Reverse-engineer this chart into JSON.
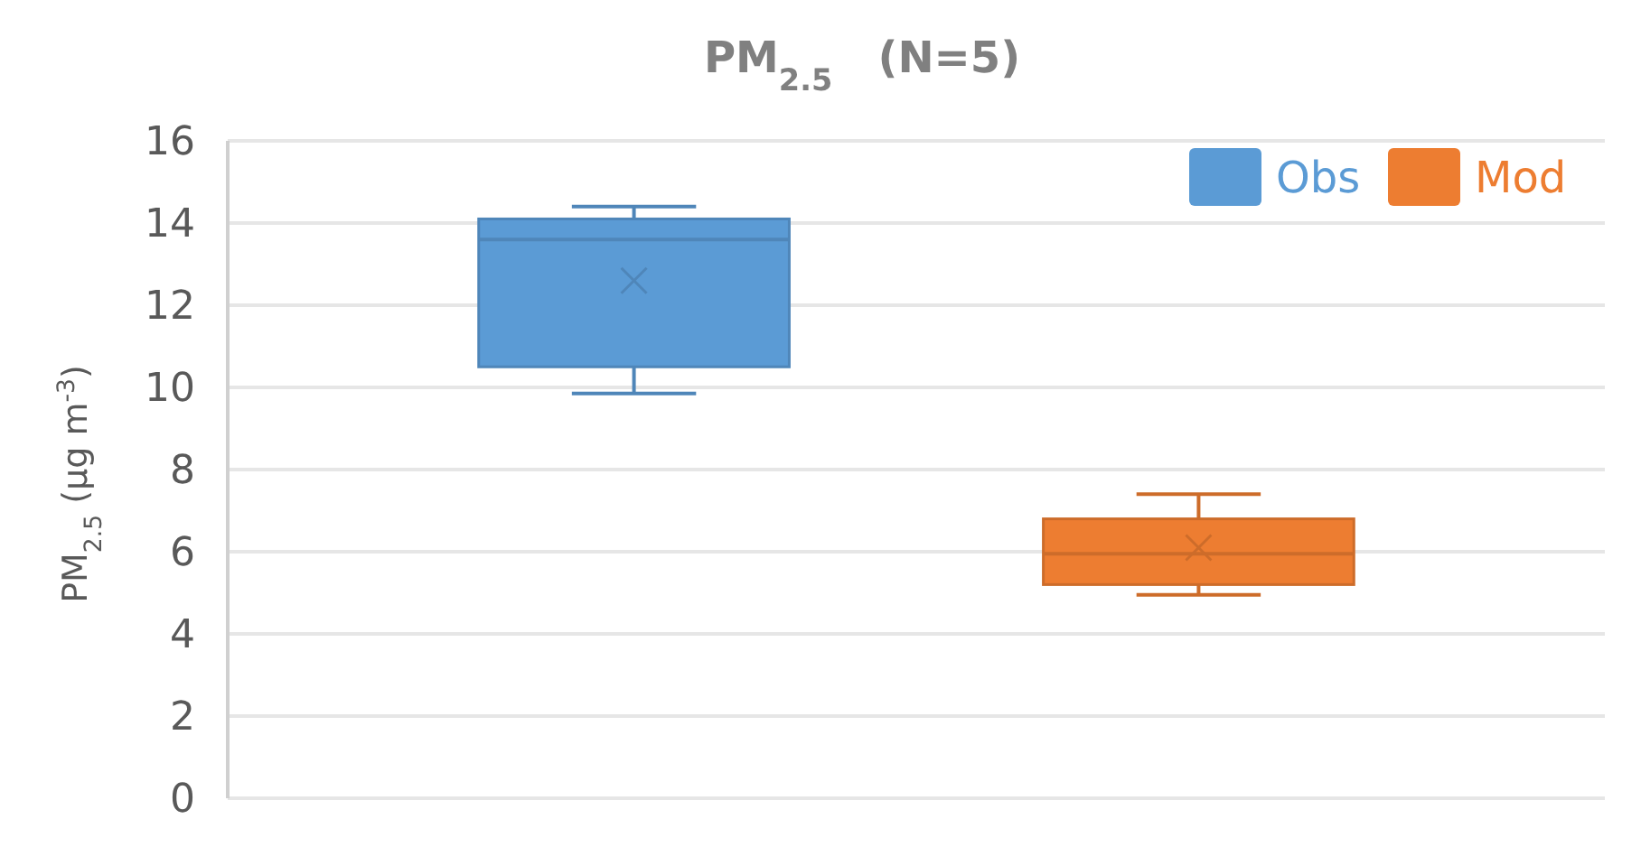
{
  "chart_data": {
    "type": "box",
    "title": "PM$_{2.5}$   (N=5)",
    "ylabel": "PM$_{2.5}$ (µg m$^{-3}$)",
    "categories": [
      null
    ],
    "series": [
      {
        "name": "Obs",
        "color": "#5b9bd5",
        "boxes": [
          {
            "low": 9.85,
            "q1": 10.5,
            "median": 13.6,
            "q3": 14.1,
            "high": 14.4,
            "mean": 12.6
          }
        ]
      },
      {
        "name": "Mod",
        "color": "#ed7d31",
        "boxes": [
          {
            "low": 4.95,
            "q1": 5.2,
            "median": 5.95,
            "q3": 6.8,
            "high": 7.4,
            "mean": 6.1
          }
        ]
      }
    ],
    "ylim": [
      0,
      16
    ],
    "yticks": [
      0,
      2,
      4,
      6,
      8,
      10,
      12,
      14,
      16
    ],
    "grid": "y",
    "legend": "top right"
  }
}
